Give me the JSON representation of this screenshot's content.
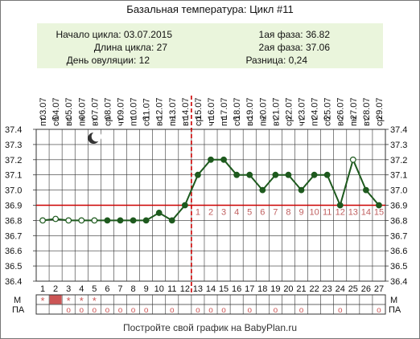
{
  "title": "Базальная температура: Цикл #11",
  "info": {
    "cycle_start": "Начало цикла: 03.07.2015",
    "cycle_length": "Длина цикла: 27",
    "ovulation_day": "День овуляции: 12",
    "phase1": "1ая фаза: 36.82",
    "phase2": "2ая фаза: 37.06",
    "difference": "Разница: 0,24"
  },
  "footer": "Постройте свой график на BabyPlan.ru",
  "colors": {
    "line": "#1e5a1e",
    "grid": "#333333",
    "coverline": "#cc0000",
    "ovulation": "#cc0000",
    "phase_number": "#c06060",
    "period": "#cc5555"
  },
  "chart_data": {
    "type": "line",
    "ylim": [
      36.4,
      37.4
    ],
    "yticks": [
      "37.4",
      "37.3",
      "37.2",
      "37.1",
      "37.0",
      "36.9",
      "36.8",
      "36.7",
      "36.6",
      "36.5",
      "36.4"
    ],
    "days": [
      "1",
      "2",
      "3",
      "4",
      "5",
      "6",
      "7",
      "8",
      "9",
      "10",
      "11",
      "12",
      "13",
      "14",
      "15",
      "16",
      "17",
      "18",
      "19",
      "20",
      "21",
      "22",
      "23",
      "24",
      "25",
      "26",
      "27"
    ],
    "dates": [
      "03.07",
      "04.07",
      "05.07",
      "06.07",
      "07.07",
      "08.07",
      "09.07",
      "10.07",
      "11.07",
      "12.07",
      "13.07",
      "14.07",
      "15.07",
      "16.07",
      "17.07",
      "18.07",
      "19.07",
      "20.07",
      "21.07",
      "22.07",
      "23.07",
      "24.07",
      "25.07",
      "26.07",
      "27.07",
      "28.07",
      "29.07"
    ],
    "weekdays": [
      "пт",
      "сб",
      "вс",
      "пн",
      "вт",
      "ср",
      "чт",
      "пт",
      "сб",
      "вс",
      "пн",
      "вт",
      "ср",
      "чт",
      "пт",
      "сб",
      "вс",
      "пн",
      "вт",
      "ср",
      "чт",
      "пт",
      "сб",
      "вс",
      "пн",
      "вт",
      "ср"
    ],
    "temperatures": [
      36.8,
      36.81,
      36.8,
      36.8,
      36.8,
      36.8,
      36.8,
      36.8,
      36.8,
      36.85,
      36.8,
      36.9,
      37.1,
      37.2,
      37.2,
      37.1,
      37.1,
      37.0,
      37.1,
      37.1,
      37.0,
      37.1,
      37.1,
      36.9,
      37.2,
      37.0,
      36.9
    ],
    "open_markers": [
      1,
      2,
      3,
      4,
      5,
      25
    ],
    "coverline": 36.9,
    "ovulation_day": 12,
    "phase2_numbers": [
      "1",
      "2",
      "3",
      "4",
      "5",
      "6",
      "7",
      "8",
      "9",
      "10",
      "11",
      "12",
      "13",
      "14",
      "15"
    ],
    "moon_day": 5,
    "rows": {
      "m_label": "М",
      "pa_label": "ПА",
      "m": [
        "*",
        "*",
        "*",
        "*",
        "*",
        "",
        "",
        "",
        "",
        "",
        "",
        "",
        "",
        "",
        "",
        "",
        "",
        "",
        "",
        "",
        "",
        "",
        "",
        "",
        "",
        "",
        ""
      ],
      "m_filled_days": [
        2
      ],
      "pa": [
        "",
        "",
        "о",
        "о",
        "о",
        "о",
        "о",
        "о",
        "о",
        "",
        "о",
        "",
        "о",
        "о",
        "о",
        "",
        "о",
        "",
        "о",
        "",
        "о",
        "",
        "",
        "о",
        "",
        "",
        "о"
      ]
    }
  }
}
